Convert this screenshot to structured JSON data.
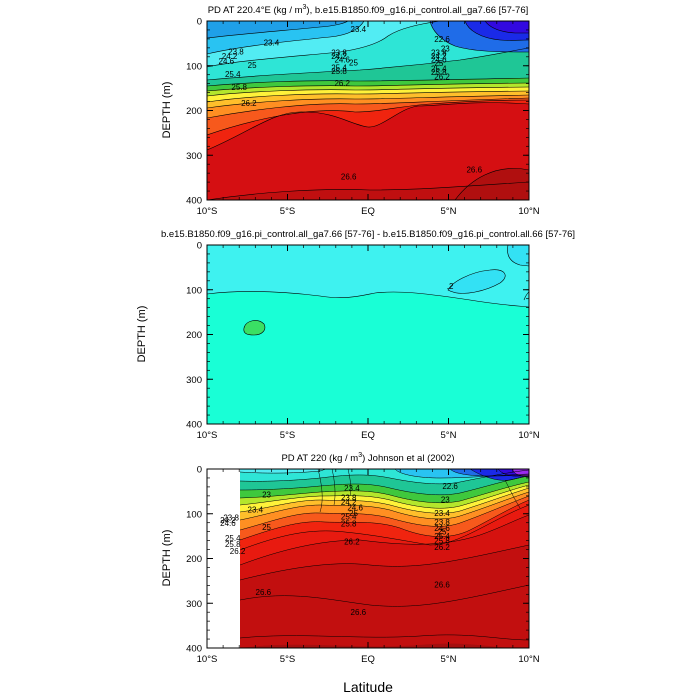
{
  "chart_data": [
    {
      "type": "contour",
      "title_prefix": "PD AT 220.4°E (kg / m",
      "title_exponent": "3",
      "title_suffix": "), b.e15.B1850.f09_g16.pi_control.all_ga7.66 [57-76]",
      "ylabel": "DEPTH (m)",
      "xlabel": "",
      "xticks": [
        "10°S",
        "5°S",
        "EQ",
        "5°N",
        "10°N"
      ],
      "yticks": [
        "0",
        "100",
        "200",
        "300",
        "400"
      ],
      "xlim": [
        -10,
        10
      ],
      "ylim": [
        0,
        400
      ],
      "contour_labels": [
        {
          "text": "23.4",
          "x": -0.6,
          "y": 18
        },
        {
          "text": "23.4",
          "x": -6.0,
          "y": 48
        },
        {
          "text": "22.6",
          "x": 4.6,
          "y": 40
        },
        {
          "text": "23",
          "x": 4.8,
          "y": 62
        },
        {
          "text": "23.8",
          "x": -8.2,
          "y": 68
        },
        {
          "text": "24.2",
          "x": -8.6,
          "y": 78
        },
        {
          "text": "24.6",
          "x": -8.8,
          "y": 89
        },
        {
          "text": "25",
          "x": -7.2,
          "y": 98
        },
        {
          "text": "25.4",
          "x": -8.4,
          "y": 118
        },
        {
          "text": "25.8",
          "x": -8.0,
          "y": 148
        },
        {
          "text": "26.2",
          "x": -7.4,
          "y": 183
        },
        {
          "text": "23.8",
          "x": -1.8,
          "y": 70
        },
        {
          "text": "24.2",
          "x": -1.8,
          "y": 78
        },
        {
          "text": "24.6",
          "x": -1.6,
          "y": 86
        },
        {
          "text": "25",
          "x": -0.9,
          "y": 93
        },
        {
          "text": "25.4",
          "x": -1.8,
          "y": 104
        },
        {
          "text": "25.8",
          "x": -1.8,
          "y": 112
        },
        {
          "text": "26.2",
          "x": -1.6,
          "y": 138
        },
        {
          "text": "23.8",
          "x": 4.4,
          "y": 70
        },
        {
          "text": "24.2",
          "x": 4.4,
          "y": 78
        },
        {
          "text": "24.6",
          "x": 4.4,
          "y": 86
        },
        {
          "text": "25",
          "x": 4.4,
          "y": 94
        },
        {
          "text": "25.4",
          "x": 4.4,
          "y": 106
        },
        {
          "text": "25.8",
          "x": 4.4,
          "y": 114
        },
        {
          "text": "26.2",
          "x": 4.6,
          "y": 124
        },
        {
          "text": "26.6",
          "x": -1.2,
          "y": 348
        },
        {
          "text": "26.6",
          "x": 6.6,
          "y": 332
        }
      ]
    },
    {
      "type": "contour",
      "title": "b.e15.B1850.f09_g16.pi_control.all_ga7.66 [57-76] - b.e15.B1850.f09_g16.pi_control.all.66 [57-76]",
      "ylabel": "DEPTH (m)",
      "xlabel": "",
      "xticks": [
        "10°S",
        "5°S",
        "EQ",
        "5°N",
        "10°N"
      ],
      "yticks": [
        "0",
        "100",
        "200",
        "300",
        "400"
      ],
      "xlim": [
        -10,
        10
      ],
      "ylim": [
        0,
        400
      ],
      "contour_labels": [
        {
          "text": ".2",
          "x": 5.1,
          "y": 92
        }
      ]
    },
    {
      "type": "contour",
      "title_prefix": "PD AT 220 (kg / m",
      "title_exponent": "3",
      "title_suffix": ") Johnson et al (2002)",
      "ylabel": "DEPTH (m)",
      "xlabel": "Latitude",
      "xticks": [
        "10°S",
        "5°S",
        "EQ",
        "5°N",
        "10°N"
      ],
      "yticks": [
        "0",
        "100",
        "200",
        "300",
        "400"
      ],
      "xlim": [
        -10,
        10
      ],
      "ylim": [
        0,
        400
      ],
      "data_xlim": [
        -8,
        10
      ],
      "contour_labels": [
        {
          "text": "23",
          "x": -6.3,
          "y": 57
        },
        {
          "text": "23.4",
          "x": -7.0,
          "y": 90
        },
        {
          "text": "23.8",
          "x": -8.5,
          "y": 108
        },
        {
          "text": "24.2",
          "x": -8.7,
          "y": 114
        },
        {
          "text": "24.6",
          "x": -8.7,
          "y": 121
        },
        {
          "text": "25",
          "x": -6.3,
          "y": 130
        },
        {
          "text": "25.4",
          "x": -8.4,
          "y": 154
        },
        {
          "text": "25.8",
          "x": -8.4,
          "y": 168
        },
        {
          "text": "26.2",
          "x": -8.1,
          "y": 183
        },
        {
          "text": "26.6",
          "x": -6.5,
          "y": 275
        },
        {
          "text": "23.4",
          "x": -1.0,
          "y": 42
        },
        {
          "text": "23.8",
          "x": -1.2,
          "y": 64
        },
        {
          "text": "24.2",
          "x": -1.2,
          "y": 74
        },
        {
          "text": "24.6",
          "x": -0.8,
          "y": 86
        },
        {
          "text": "25",
          "x": -0.9,
          "y": 98
        },
        {
          "text": "25.4",
          "x": -1.2,
          "y": 106
        },
        {
          "text": "25.8",
          "x": -1.2,
          "y": 122
        },
        {
          "text": "26.2",
          "x": -1.0,
          "y": 162
        },
        {
          "text": "26.6",
          "x": -0.6,
          "y": 320
        },
        {
          "text": "22.6",
          "x": 5.1,
          "y": 38
        },
        {
          "text": "23",
          "x": 4.8,
          "y": 68
        },
        {
          "text": "23.4",
          "x": 4.6,
          "y": 98
        },
        {
          "text": "23.8",
          "x": 4.6,
          "y": 118
        },
        {
          "text": "24.6",
          "x": 4.6,
          "y": 132
        },
        {
          "text": "25",
          "x": 4.6,
          "y": 140
        },
        {
          "text": "25.4",
          "x": 4.6,
          "y": 150
        },
        {
          "text": "25.8",
          "x": 4.6,
          "y": 160
        },
        {
          "text": "26.2",
          "x": 4.6,
          "y": 174
        },
        {
          "text": "26.6",
          "x": 4.6,
          "y": 258
        }
      ]
    }
  ]
}
